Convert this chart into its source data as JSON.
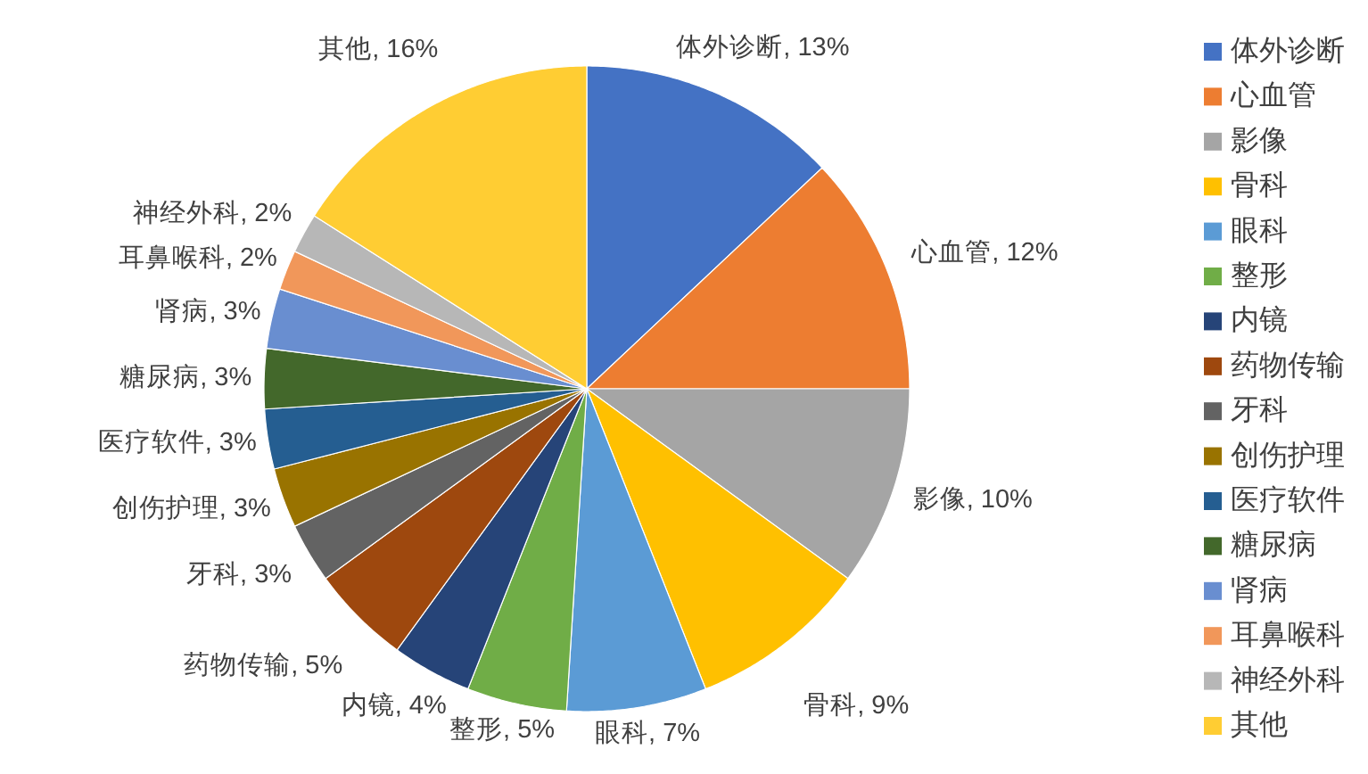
{
  "chart_data": {
    "type": "pie",
    "categories": [
      "体外诊断",
      "心血管",
      "影像",
      "骨科",
      "眼科",
      "整形",
      "内镜",
      "药物传输",
      "牙科",
      "创伤护理",
      "医疗软件",
      "糖尿病",
      "肾病",
      "耳鼻喉科",
      "神经外科",
      "其他"
    ],
    "values": [
      13,
      12,
      10,
      9,
      7,
      5,
      4,
      5,
      3,
      3,
      3,
      3,
      3,
      2,
      2,
      16
    ],
    "colors": [
      "#4472c4",
      "#ed7d31",
      "#a5a5a5",
      "#ffc000",
      "#5b9bd5",
      "#70ad47",
      "#264478",
      "#9e480e",
      "#636363",
      "#997300",
      "#255e91",
      "#43682b",
      "#698ed0",
      "#f1975a",
      "#b7b7b7",
      "#ffcd33"
    ],
    "value_labels": [
      "体外诊断, 13%",
      "心血管, 12%",
      "影像, 10%",
      "骨科, 9%",
      "眼科, 7%",
      "整形, 5%",
      "内镜, 4%",
      "药物传输, 5%",
      "牙科, 3%",
      "创伤护理, 3%",
      "医疗软件, 3%",
      "糖尿病, 3%",
      "肾病, 3%",
      "耳鼻喉科, 2%",
      "神经外科, 2%",
      "其他, 16%"
    ],
    "legend": "right"
  }
}
